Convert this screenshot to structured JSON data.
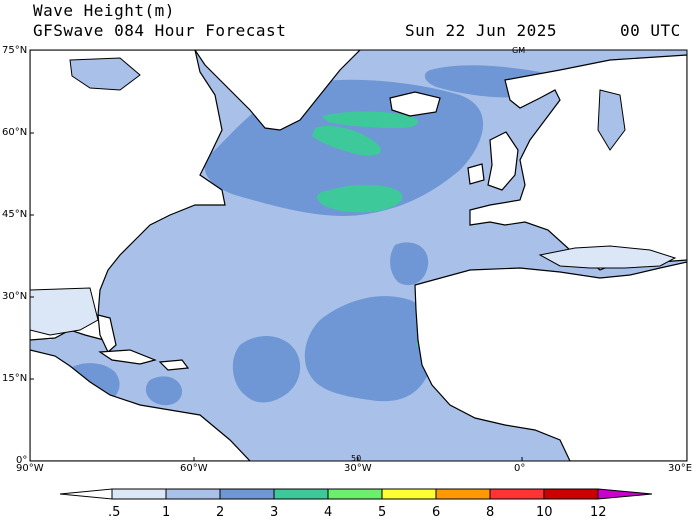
{
  "header": {
    "title": "Wave Height(m)",
    "subtitle": "GFSwave 084 Hour Forecast",
    "date": "Sun 22 Jun 2025",
    "time": "00 UTC"
  },
  "map": {
    "lat_labels": [
      "75°N",
      "60°N",
      "45°N",
      "30°N",
      "15°N",
      "0°"
    ],
    "lon_labels": [
      "90°W",
      "60°W",
      "30°W",
      "0°",
      "30°E"
    ],
    "extent": {
      "lon": [
        -90,
        30
      ],
      "lat": [
        0,
        75
      ]
    },
    "small_marks": [
      "GM",
      "50"
    ]
  },
  "colorbar": {
    "labels": [
      ".5",
      "1",
      "2",
      "3",
      "4",
      "5",
      "6",
      "8",
      "10",
      "12"
    ],
    "units": "m",
    "colors": [
      "#ffffff",
      "#dbe6f7",
      "#a9c1e8",
      "#6f97d6",
      "#3ec99a",
      "#6cf06c",
      "#ffff33",
      "#ff9900",
      "#ff3333",
      "#cc0000",
      "#cc00cc"
    ]
  },
  "colors": {
    "land": "#ffffff",
    "coast": "#000000"
  }
}
